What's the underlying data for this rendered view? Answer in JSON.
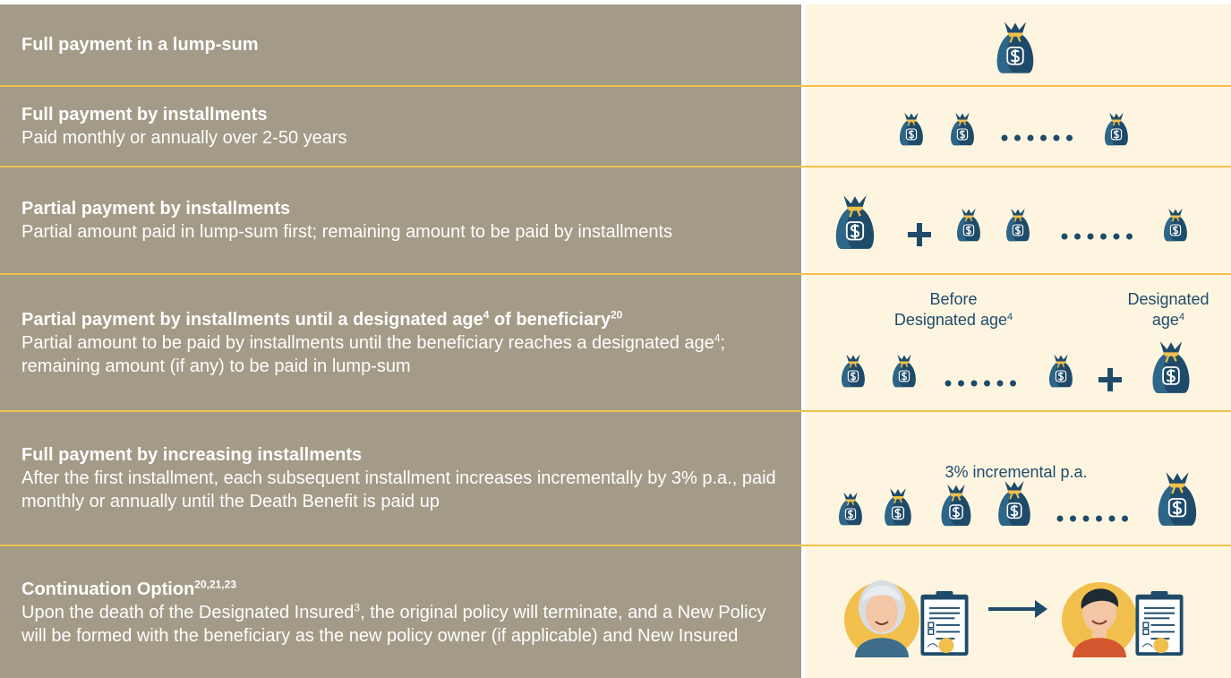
{
  "rows": [
    {
      "title": [
        "Full payment in a lump-sum"
      ]
    },
    {
      "title": [
        "Full payment by installments"
      ],
      "description": [
        "Paid monthly or annually over 2-50 years"
      ]
    },
    {
      "title": [
        "Partial payment by installments"
      ],
      "description": [
        "Partial amount paid in lump-sum first; remaining amount to be paid by installments"
      ]
    },
    {
      "title": [
        "Partial payment by installments until a designated age",
        {
          "sup": "4"
        },
        " of beneficiary",
        {
          "sup": "20"
        }
      ],
      "description": [
        "Partial amount to be paid by installments until the beneficiary reaches a designated age",
        {
          "sup": "4"
        },
        "; remaining amount (if any) to be paid in lump-sum"
      ],
      "illustration": {
        "labels": [
          [
            [
              "Before"
            ],
            [
              "Designated age",
              {
                "sup": "4"
              }
            ]
          ],
          [
            [
              "Designated"
            ],
            [
              "age",
              {
                "sup": "4"
              }
            ]
          ]
        ]
      }
    },
    {
      "title": [
        "Full payment by increasing installments"
      ],
      "description": [
        "After the first installment, each subsequent installment increases incrementally by 3% p.a., paid monthly or annually until the Death Benefit is paid up"
      ],
      "illustration": {
        "labels": [
          [
            [
              "3% incremental p.a."
            ]
          ]
        ]
      }
    },
    {
      "title": [
        "Continuation Option",
        {
          "sup": "20,21,23"
        }
      ],
      "description": [
        "Upon the death of the Designated Insured",
        {
          "sup": "3"
        },
        ", the original policy will terminate, and a New Policy will be formed with the beneficiary as the new policy owner (if applicable) and New Insured"
      ]
    }
  ]
}
